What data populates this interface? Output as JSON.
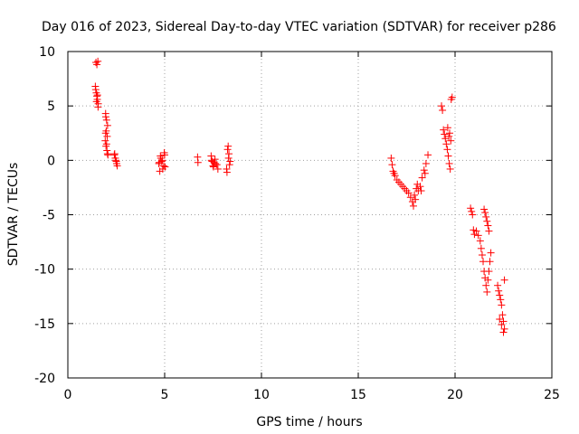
{
  "chart_data": {
    "type": "scatter",
    "title": "Day 016 of 2023, Sidereal Day-to-day VTEC variation (SDTVAR) for receiver p286",
    "xlabel": "GPS time / hours",
    "ylabel": "SDTVAR / TECUs",
    "xlim": [
      0,
      25
    ],
    "ylim": [
      -20,
      10
    ],
    "xticks": [
      0,
      5,
      10,
      15,
      20,
      25
    ],
    "xtick_labels": [
      "0",
      "5",
      "10",
      "15",
      "20",
      "25"
    ],
    "yticks": [
      10,
      5,
      0,
      -5,
      -10,
      -15,
      -20
    ],
    "ytick_labels": [
      "10",
      "5",
      "0",
      "-5",
      "-10",
      "-15",
      "-20"
    ],
    "grid": true,
    "marker": "+",
    "color": "#ff0000",
    "series": [
      {
        "name": "SDTVAR",
        "x": [
          1.45,
          1.5,
          1.55,
          1.42,
          1.47,
          1.52,
          1.57,
          1.44,
          1.5,
          1.56,
          1.48,
          1.53,
          1.95,
          2.0,
          2.05,
          1.98,
          2.03,
          1.93,
          1.97,
          2.02,
          2.07,
          1.95,
          2.0,
          1.96,
          2.05,
          2.4,
          2.45,
          2.5,
          2.55,
          2.42,
          2.48,
          2.52,
          4.7,
          4.8,
          4.9,
          5.0,
          4.75,
          4.85,
          4.95,
          4.78,
          4.88,
          4.98,
          5.02,
          4.72,
          6.7,
          6.72,
          7.4,
          7.45,
          7.5,
          7.55,
          7.6,
          7.7,
          7.75,
          7.42,
          7.52,
          7.62,
          8.2,
          8.25,
          8.3,
          8.35,
          8.28,
          8.22,
          8.32,
          8.38,
          16.7,
          16.8,
          16.9,
          17.0,
          17.1,
          17.2,
          17.3,
          17.4,
          17.5,
          17.6,
          17.7,
          17.8,
          17.9,
          18.0,
          18.1,
          18.2,
          18.3,
          18.4,
          18.5,
          18.6,
          17.85,
          17.95,
          18.05,
          16.75,
          16.85,
          18.25,
          18.45,
          19.3,
          19.35,
          19.4,
          19.45,
          19.5,
          19.55,
          19.6,
          19.65,
          19.7,
          19.75,
          19.8,
          19.85,
          19.62,
          19.72,
          19.78,
          19.68,
          20.8,
          20.85,
          20.9,
          20.95,
          21.0,
          21.1,
          21.2,
          21.3,
          21.35,
          21.4,
          21.45,
          21.5,
          21.55,
          21.6,
          21.65,
          21.7,
          21.75,
          21.8,
          21.85,
          21.5,
          21.55,
          21.6,
          21.65,
          21.7,
          21.75,
          22.2,
          22.25,
          22.3,
          22.35,
          22.4,
          22.45,
          22.5,
          22.55,
          22.3,
          22.4,
          22.5,
          22.55
        ],
        "y": [
          9.0,
          8.8,
          9.1,
          6.8,
          6.2,
          5.6,
          5.2,
          6.5,
          5.9,
          4.9,
          5.4,
          6.0,
          4.3,
          3.7,
          3.2,
          2.7,
          2.2,
          1.8,
          1.3,
          0.9,
          0.5,
          2.5,
          1.5,
          4.0,
          0.6,
          0.5,
          0.2,
          -0.1,
          -0.5,
          0.6,
          0.0,
          -0.3,
          -0.3,
          0.2,
          -0.8,
          0.5,
          -1.0,
          -0.1,
          -0.5,
          0.4,
          0.0,
          0.7,
          -0.6,
          -0.2,
          0.3,
          -0.2,
          0.4,
          -0.1,
          -0.5,
          -0.2,
          0.1,
          -0.4,
          -0.8,
          0.0,
          -0.6,
          -0.3,
          -0.8,
          1.0,
          0.2,
          -0.4,
          1.3,
          -1.1,
          0.6,
          -0.1,
          0.2,
          -1.0,
          -1.4,
          -1.8,
          -2.0,
          -2.2,
          -2.4,
          -2.6,
          -2.8,
          -3.0,
          -3.4,
          -3.8,
          -3.2,
          -2.6,
          -2.8,
          -2.4,
          -1.6,
          -0.9,
          -0.3,
          0.5,
          -4.2,
          -3.6,
          -2.2,
          -0.4,
          -1.2,
          -2.8,
          -1.2,
          5.0,
          4.6,
          2.8,
          2.4,
          2.0,
          1.5,
          1.0,
          0.4,
          -0.3,
          -0.8,
          5.6,
          5.8,
          3.0,
          2.5,
          1.8,
          2.2,
          -4.4,
          -4.7,
          -5.0,
          -6.4,
          -6.8,
          -6.5,
          -6.9,
          -7.4,
          -8.1,
          -8.7,
          -9.3,
          -10.2,
          -10.8,
          -11.5,
          -12.1,
          -11.0,
          -10.2,
          -9.3,
          -8.5,
          -4.5,
          -4.8,
          -5.2,
          -5.6,
          -6.0,
          -6.5,
          -11.5,
          -12.0,
          -12.4,
          -12.8,
          -13.3,
          -14.2,
          -14.8,
          -15.5,
          -14.6,
          -15.1,
          -15.8,
          -11.0
        ]
      }
    ]
  }
}
